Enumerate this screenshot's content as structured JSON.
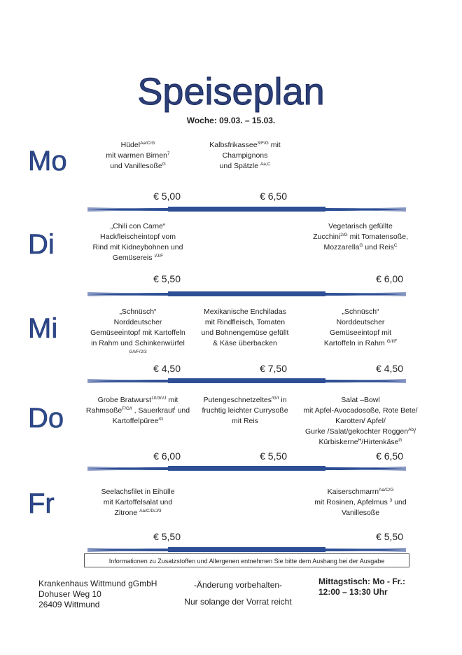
{
  "title": "Speiseplan",
  "week": "Woche:  09.03. – 15.03.",
  "colors": {
    "title": "#2c3f78",
    "day": "#2e4a8c",
    "divider": "#2e4f95"
  },
  "days": [
    {
      "label": "Mo",
      "dishes": [
        {
          "col": 0,
          "lines": [
            [
              {
                "t": "Hüdel"
              },
              {
                "t": "Aa/C/G",
                "sup": true
              }
            ],
            [
              {
                "t": "mit warmen Birnen"
              },
              {
                "t": "7",
                "sup": true
              }
            ],
            [
              {
                "t": "und Vanillesoße"
              },
              {
                "t": "G",
                "sup": true
              }
            ]
          ],
          "price": "€ 5,00"
        },
        {
          "col": 1,
          "lines": [
            [
              {
                "t": "Kalbsfrikassee"
              },
              {
                "t": "3/F/G",
                "sup": true
              },
              {
                "t": " mit"
              }
            ],
            [
              {
                "t": "Champignons"
              }
            ],
            [
              {
                "t": "und Spätzle "
              },
              {
                "t": "Aa,C",
                "sup": true
              }
            ]
          ],
          "price": "€ 6,50"
        }
      ]
    },
    {
      "label": "Di",
      "dishes": [
        {
          "col": 0,
          "lines": [
            [
              {
                "t": "„Chili con Carne“"
              }
            ],
            [
              {
                "t": "Hackfleischeintopf vom"
              }
            ],
            [
              {
                "t": "Rind mit Kidneybohnen und"
              }
            ],
            [
              {
                "t": "Gemüsereis "
              },
              {
                "t": "I/J/F",
                "sup": true
              }
            ]
          ],
          "price": "€ 5,50"
        },
        {
          "col": 2,
          "lines": [
            [
              {
                "t": "Vegetarisch gefüllte"
              }
            ],
            [
              {
                "t": "Zucchini"
              },
              {
                "t": "2/G",
                "sup": true
              },
              {
                "t": " mit Tomatensoße,"
              }
            ],
            [
              {
                "t": "Mozzarella"
              },
              {
                "t": "G",
                "sup": true
              },
              {
                "t": " und Reis"
              },
              {
                "t": "C",
                "sup": true
              }
            ]
          ],
          "price": "€ 6,00"
        }
      ]
    },
    {
      "label": "Mi",
      "dishes": [
        {
          "col": 0,
          "lines": [
            [
              {
                "t": "„Schnüsch“"
              }
            ],
            [
              {
                "t": "Norddeutscher"
              }
            ],
            [
              {
                "t": "Gemüseeintopf mit Kartoffeln"
              }
            ],
            [
              {
                "t": "in Rahm und Schinkenwürfel"
              }
            ],
            [
              {
                "t": "G/I/F/2/3",
                "sup": true
              }
            ]
          ],
          "price": "€ 4,50"
        },
        {
          "col": 1,
          "lines": [
            [
              {
                "t": "Mexikanische Enchiladas"
              }
            ],
            [
              {
                "t": "mit Rindfleisch, Tomaten"
              }
            ],
            [
              {
                "t": "und Bohnengemüse gefüllt"
              }
            ],
            [
              {
                "t": "& Käse überbacken"
              }
            ]
          ],
          "price": "€ 7,50"
        },
        {
          "col": 2,
          "lines": [
            [
              {
                "t": "„Schnüsch“"
              }
            ],
            [
              {
                "t": "Norddeutscher"
              }
            ],
            [
              {
                "t": "Gemüseeintopf mit"
              }
            ],
            [
              {
                "t": "Kartoffeln in Rahm "
              },
              {
                "t": "G/I/F",
                "sup": true
              }
            ]
          ],
          "price": "€ 4,50"
        }
      ]
    },
    {
      "label": "Do",
      "dishes": [
        {
          "col": 0,
          "lines": [
            [
              {
                "t": "Grobe Bratwurst"
              },
              {
                "t": "10/3/I/J",
                "sup": true
              },
              {
                "t": " mit"
              }
            ],
            [
              {
                "t": "Rahmsoße"
              },
              {
                "t": "F/G/I",
                "sup": true
              },
              {
                "t": " , Sauerkraut"
              },
              {
                "t": "I",
                "sup": true
              },
              {
                "t": " und"
              }
            ],
            [
              {
                "t": "Kartoffelpüree"
              },
              {
                "t": "/G",
                "sup": true
              }
            ]
          ],
          "price": "€ 6,00"
        },
        {
          "col": 1,
          "lines": [
            [
              {
                "t": "Putengeschnetzeltes"
              },
              {
                "t": "/G/I",
                "sup": true
              },
              {
                "t": "  in"
              }
            ],
            [
              {
                "t": "fruchtig leichter Currysoße"
              }
            ],
            [
              {
                "t": "mit Reis"
              }
            ]
          ],
          "price": "€ 5,50"
        },
        {
          "col": 2,
          "lines": [
            [
              {
                "t": "Salat –Bowl"
              }
            ],
            [
              {
                "t": "mit Apfel-Avocadosoße, Rote Bete/"
              }
            ],
            [
              {
                "t": "Karotten/ Apfel/"
              }
            ],
            [
              {
                "t": "Gurke /Salat/gekochter Roggen"
              },
              {
                "t": "Ab",
                "sup": true
              },
              {
                "t": "/"
              }
            ],
            [
              {
                "t": "Kürbiskerne"
              },
              {
                "t": "H",
                "sup": true
              },
              {
                "t": "/Hirtenkäse"
              },
              {
                "t": "G",
                "sup": true
              }
            ]
          ],
          "price": "€ 6,50"
        }
      ]
    },
    {
      "label": "Fr",
      "dishes": [
        {
          "col": 0,
          "lines": [
            [
              {
                "t": "Seelachsfilet in Eihülle"
              }
            ],
            [
              {
                "t": "mit Kartoffelsalat und"
              }
            ],
            [
              {
                "t": "Zitrone "
              },
              {
                "t": "Aa/C/D/J/3",
                "sup": true
              }
            ]
          ],
          "price": "€ 5,50"
        },
        {
          "col": 2,
          "lines": [
            [
              {
                "t": "Kaiserschmarrn"
              },
              {
                "t": "Aa/C/G",
                "sup": true
              }
            ],
            [
              {
                "t": "mit Rosinen, Apfelmus "
              },
              {
                "t": "3",
                "sup": true
              },
              {
                "t": " und"
              }
            ],
            [
              {
                "t": "Vanillesoße"
              }
            ]
          ],
          "price": "€ 5,50"
        }
      ]
    }
  ],
  "info": "Informationen zu Zusatzstoffen und Allergenen entnehmen Sie bitte dem Aushang bei der Ausgabe",
  "footer": {
    "address": [
      "Krankenhaus Wittmund gGmbH",
      "Dohuser Weg 10",
      "26409 Wittmund"
    ],
    "change": "-Änderung vorbehalten-",
    "stock": "Nur solange der Vorrat reicht",
    "hours_label": "Mittagstisch: Mo - Fr.:",
    "hours": "12:00 – 13:30 Uhr"
  }
}
